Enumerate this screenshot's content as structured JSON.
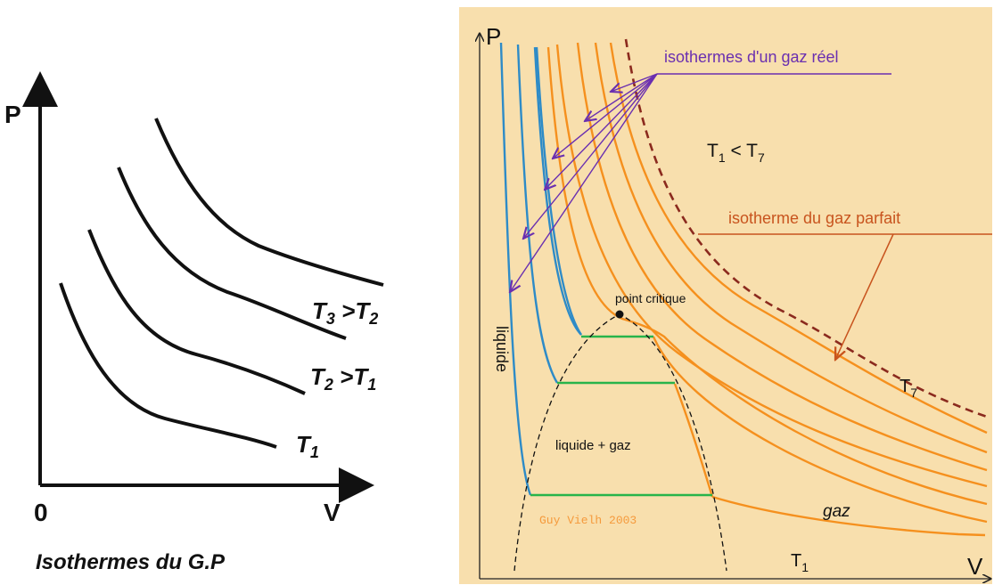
{
  "left": {
    "axis_p": "P",
    "axis_v": "V",
    "origin": "0",
    "label_t3": "T",
    "label_t3_sub": "3",
    "label_t3_rel": " >T",
    "label_t3_rel_sub": "2",
    "label_t2": "T",
    "label_t2_sub": "2",
    "label_t2_rel": " >T",
    "label_t2_rel_sub": "1",
    "label_t1": "T",
    "label_t1_sub": "1",
    "caption": "Isothermes du G.P"
  },
  "right": {
    "axis_p": "P",
    "axis_v": "V",
    "real_gas_label": "isothermes d'un gaz réel",
    "t1_lt_t7": "T",
    "t1_sub": "1",
    "lt": "  <  T",
    "t7_sub": "7",
    "ideal_gas_label": "isotherme du gaz parfait",
    "critical_point_label": "point  critique",
    "liquid_label": "liquide",
    "liquid_gas_label": "liquide + gaz",
    "credit": "Guy Vielh 2003",
    "gas_label": "gaz",
    "t7_label": "T",
    "t7_label_sub": "7",
    "t1_label": "T",
    "t1_label_sub": "1"
  },
  "colors": {
    "background_right": "#f8dfad",
    "isotherm_orange": "#f5901e",
    "isotherm_blue": "#2e8bc7",
    "plateau_green": "#28b44a",
    "arrow_purple": "#6a2fb0",
    "ideal_gas_dashed": "#8b2a1e",
    "ideal_gas_arrow": "#c8541e",
    "credit_orange": "#f59a3c"
  }
}
